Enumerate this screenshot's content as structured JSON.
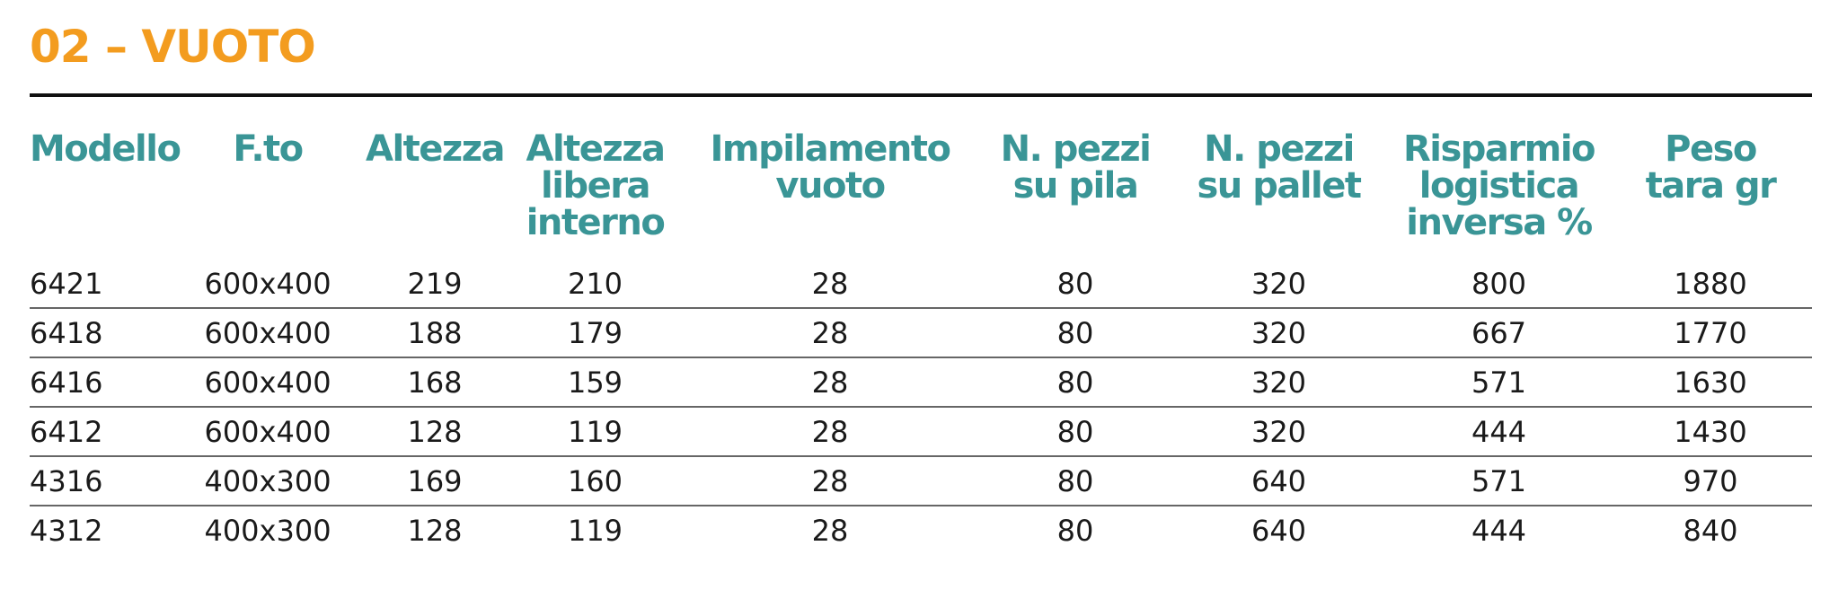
{
  "title": "02 – VUOTO",
  "headers": [
    "Modello",
    "F.to",
    "Altezza",
    "Altezza\nlibera\ninterno",
    "Impilamento\nvuoto",
    "N. pezzi\nsu pila",
    "N. pezzi\nsu pallet",
    "Risparmio\nlogistica\ninversa %",
    "Peso\ntara gr"
  ],
  "rows": [
    [
      "6421",
      "600x400",
      "219",
      "210",
      "28",
      "80",
      "320",
      "800",
      "1880"
    ],
    [
      "6418",
      "600x400",
      "188",
      "179",
      "28",
      "80",
      "320",
      "667",
      "1770"
    ],
    [
      "6416",
      "600x400",
      "168",
      "159",
      "28",
      "80",
      "320",
      "571",
      "1630"
    ],
    [
      "6412",
      "600x400",
      "128",
      "119",
      "28",
      "80",
      "320",
      "444",
      "1430"
    ],
    [
      "4316",
      "400x300",
      "169",
      "160",
      "28",
      "80",
      "640",
      "571",
      "970"
    ],
    [
      "4312",
      "400x300",
      "128",
      "119",
      "28",
      "80",
      "640",
      "444",
      "840"
    ]
  ],
  "colors": {
    "title": "#F39C1F",
    "header": "#3A9596",
    "rule": "#111111"
  }
}
